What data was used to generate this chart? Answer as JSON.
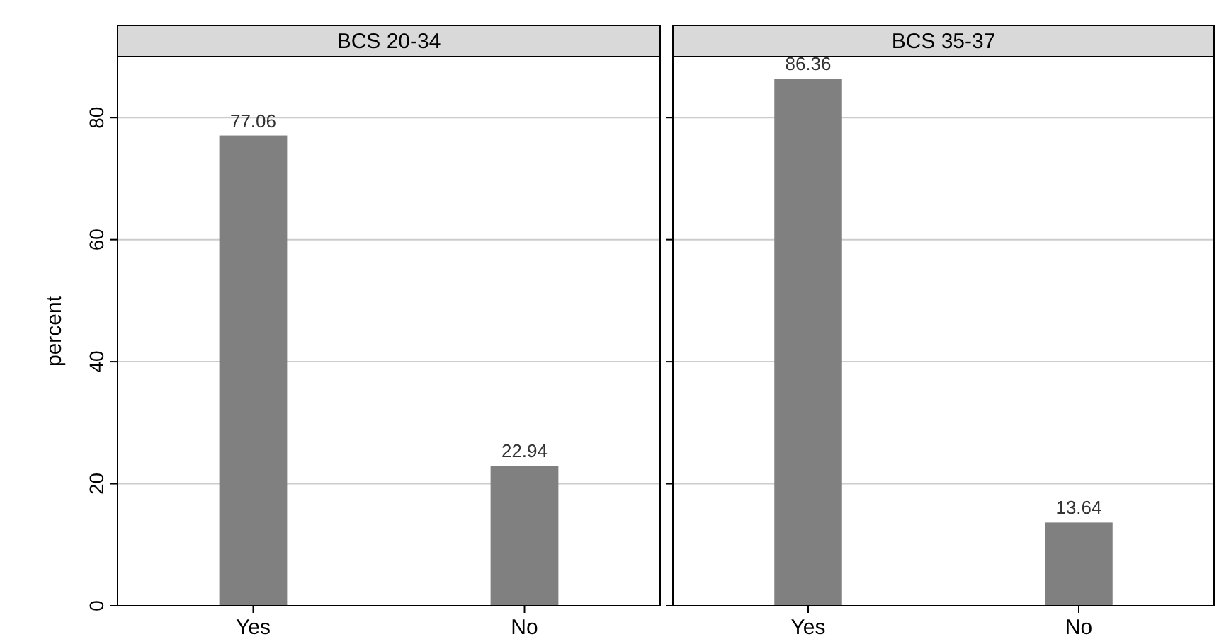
{
  "chart_data": [
    {
      "type": "bar",
      "title": "BCS 20-34",
      "ylabel": "percent",
      "categories": [
        "Yes",
        "No"
      ],
      "values": [
        77.06,
        22.94
      ],
      "color": "#808080",
      "ylim": [
        0,
        90
      ],
      "yticks": [
        0,
        20,
        40,
        60,
        80
      ],
      "grid": "y",
      "data_labels": true
    },
    {
      "type": "bar",
      "title": "BCS 35-37",
      "categories": [
        "Yes",
        "No"
      ],
      "values": [
        86.36,
        13.64
      ],
      "color": "#808080",
      "ylim": [
        0,
        90
      ],
      "yticks": [
        0,
        20,
        40,
        60,
        80
      ],
      "grid": "y",
      "data_labels": true,
      "tick_labels": "x"
    }
  ]
}
